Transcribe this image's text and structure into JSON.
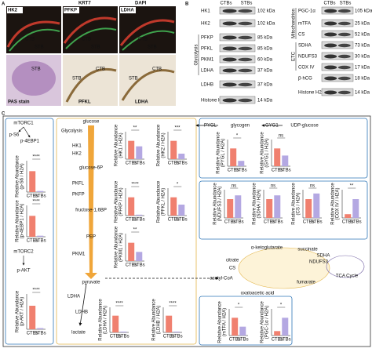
{
  "panels": {
    "a": "A",
    "b": "B",
    "c": "C"
  },
  "panel_a": {
    "top_header": [
      "KRT7",
      "DAPI"
    ],
    "top_images": [
      "HK2",
      "PFKP",
      "LDHA"
    ],
    "bottom_images": [
      "PAS stain",
      "PFKL",
      "LDHA"
    ],
    "cell_labels": [
      "CTB",
      "STB"
    ]
  },
  "panel_b": {
    "columns": [
      "CTBs",
      "STBs"
    ],
    "left": {
      "group": "Glycolysis",
      "rows": [
        {
          "name": "HK1",
          "size": "102 kDa"
        },
        {
          "name": "HK2",
          "size": "102 kDa"
        },
        {
          "name": "PFKP",
          "size": "85 kDa"
        },
        {
          "name": "PFKL",
          "size": "85 kDa"
        },
        {
          "name": "PKM1",
          "size": "60 kDa"
        },
        {
          "name": "LDHA",
          "size": "37 kDa"
        },
        {
          "name": "LDHB",
          "size": "37 kDa"
        },
        {
          "name": "Histone H2A",
          "size": "14 kDa"
        }
      ]
    },
    "right": {
      "groups": [
        "Mitochondrion",
        "ETC"
      ],
      "rows": [
        {
          "name": "PGC-1α",
          "size": "105 kDa"
        },
        {
          "name": "mTFA",
          "size": "25 kDa"
        },
        {
          "name": "CS",
          "size": "52 kDa"
        },
        {
          "name": "SDHA",
          "size": "73 kDa"
        },
        {
          "name": "NDUFS3",
          "size": "30 kDa"
        },
        {
          "name": "COX IV",
          "size": "17 kDa"
        },
        {
          "name": "β-hCG",
          "size": "18 kDa"
        },
        {
          "name": "Histone H2A",
          "size": "14 kDa"
        }
      ]
    }
  },
  "panel_c": {
    "signaling": [
      "mTORC1",
      "p-S6",
      "p-4EBP1",
      "mTORC2",
      "p-AKT"
    ],
    "glycolysis": {
      "title": "Glycolysis",
      "metabolites": [
        "glucose",
        "glucose-6P",
        "fructose-1,6BP",
        "PEP",
        "pyruvate",
        "lactate"
      ],
      "enzymes": [
        "HK1",
        "HK2",
        "PKFL",
        "PKFP",
        "PKM1",
        "LDHA",
        "LDHB"
      ]
    },
    "glycogen": {
      "metabolites": [
        "glycogen",
        "UDP-glucose"
      ],
      "enzymes": [
        "PYGL",
        "GYG1"
      ]
    },
    "tca": {
      "metabolites": [
        "α-ketoglutarate",
        "succinate",
        "citrate",
        "acetyl-CoA",
        "oxaloacetic acid",
        "fumarate"
      ],
      "enzymes": [
        "SDHA",
        "NDUFS3",
        "CS"
      ],
      "title": "TCA Cycle"
    },
    "categories": [
      "CTBs",
      "STBs"
    ],
    "colors": [
      "#f0806f",
      "#b4a8e2"
    ],
    "charts": [
      {
        "ylabel": [
          "Relative Abundance",
          "(p-S6 / H2A)"
        ],
        "sig": "****",
        "values": [
          1.0,
          0.05
        ],
        "ylim": [
          0,
          1.5
        ]
      },
      {
        "ylabel": [
          "Relative Abundance",
          "(p-4EBP1 / H2A)"
        ],
        "sig": "****",
        "values": [
          1.0,
          0.05
        ],
        "ylim": [
          0,
          1.5
        ]
      },
      {
        "ylabel": [
          "Relative Abundance",
          "(p-AKT / H2A)"
        ],
        "sig": "****",
        "values": [
          1.0,
          0.05
        ],
        "ylim": [
          0,
          1.5
        ]
      },
      {
        "ylabel": [
          "Relative Abundance",
          "(HK1 / H2A)"
        ],
        "sig": "**",
        "values": [
          1.0,
          0.7
        ],
        "ylim": [
          0,
          1.5
        ]
      },
      {
        "ylabel": [
          "Relative Abundance",
          "(HK2 / H2A)"
        ],
        "sig": "***",
        "values": [
          1.0,
          0.3
        ],
        "ylim": [
          0,
          1.5
        ]
      },
      {
        "ylabel": [
          "Relative Abundance",
          "(PFKP / H2A)"
        ],
        "sig": "****",
        "values": [
          1.0,
          0.05
        ],
        "ylim": [
          0,
          1.5
        ]
      },
      {
        "ylabel": [
          "Relative Abundance",
          "(PFKL / H2A)"
        ],
        "sig": "*",
        "values": [
          1.0,
          0.6
        ],
        "ylim": [
          0,
          1.5
        ]
      },
      {
        "ylabel": [
          "Relative Abundance",
          "(PKM1 / H2A)"
        ],
        "sig": "**",
        "values": [
          1.0,
          0.5
        ],
        "ylim": [
          0,
          1.5
        ]
      },
      {
        "ylabel": [
          "Relative Abundance",
          "(LDHA / H2A)"
        ],
        "sig": "****",
        "values": [
          1.0,
          0.05
        ],
        "ylim": [
          0,
          1.5
        ]
      },
      {
        "ylabel": [
          "Relative Abundance",
          "(LDHB / H2A)"
        ],
        "sig": "****",
        "values": [
          1.0,
          0.05
        ],
        "ylim": [
          0,
          1.5
        ]
      },
      {
        "ylabel": [
          "Relative Abundance",
          "(PYGL / H2A)"
        ],
        "sig": "*",
        "values": [
          1.0,
          0.3
        ],
        "ylim": [
          0,
          1.5
        ]
      },
      {
        "ylabel": [
          "Relative Abundance",
          "(GYG1 / H2A)"
        ],
        "sig": "ns",
        "values": [
          1.0,
          0.6
        ],
        "ylim": [
          0,
          1.5
        ]
      },
      {
        "ylabel": [
          "Relative Abundance",
          "(NDUFS3 / H2A)"
        ],
        "sig": "ns",
        "values": [
          1.0,
          1.2
        ],
        "ylim": [
          0,
          1.5
        ]
      },
      {
        "ylabel": [
          "Relative Abundance",
          "(SDHA / H2A)"
        ],
        "sig": "ns",
        "values": [
          1.0,
          1.2
        ],
        "ylim": [
          0,
          1.5
        ]
      },
      {
        "ylabel": [
          "Relative Abundance",
          "(CS / H2A)"
        ],
        "sig": "ns",
        "values": [
          1.0,
          1.3
        ],
        "ylim": [
          0,
          1.5
        ]
      },
      {
        "ylabel": [
          "Relative Abundance",
          "(COX IV / H2A)"
        ],
        "sig": "**",
        "values": [
          0.2,
          1.0
        ],
        "ylim": [
          0,
          1.5
        ]
      },
      {
        "ylabel": [
          "Relative Abundance",
          "(mTFA / H2A)"
        ],
        "sig": "*",
        "values": [
          1.0,
          0.5
        ],
        "ylim": [
          0,
          1.5
        ]
      },
      {
        "ylabel": [
          "Relative Abundance",
          "(PGC-1α / H2A)"
        ],
        "sig": "*",
        "values": [
          1.0,
          4.0
        ],
        "ylim": [
          0,
          6
        ]
      }
    ]
  }
}
